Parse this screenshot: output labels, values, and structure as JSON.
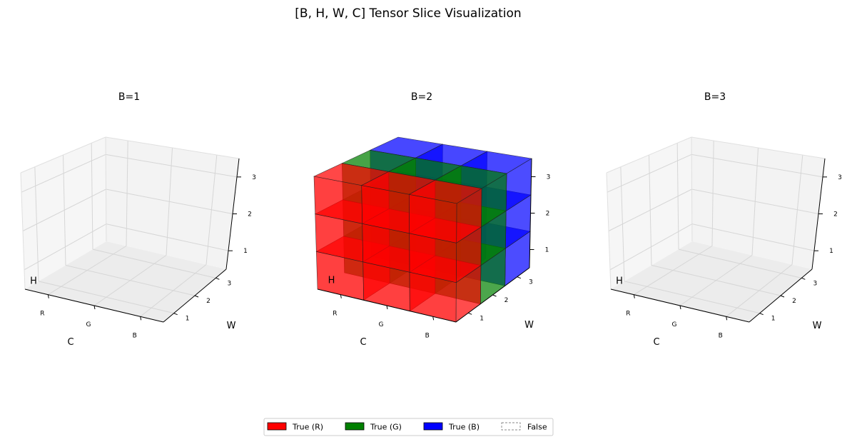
{
  "figure": {
    "title": "[B, H, W, C] Tensor Slice Visualization"
  },
  "axes": {
    "x_label": "C",
    "y_label": "W",
    "z_label": "H",
    "x_ticks": [
      "R",
      "G",
      "B"
    ],
    "y_ticks": [
      "1",
      "2",
      "3"
    ],
    "z_ticks": [
      "1",
      "2",
      "3"
    ]
  },
  "colors": {
    "R": "#ff0000",
    "G": "#008000",
    "B": "#0000ff",
    "pane": "#f2f2f2",
    "grid": "#d6d6d6",
    "edge": "#000000"
  },
  "panels": [
    {
      "title": "B=1",
      "filled": false
    },
    {
      "title": "B=2",
      "filled": true
    },
    {
      "title": "B=3",
      "filled": false
    }
  ],
  "legend": [
    {
      "label": "True (R)",
      "color": "#ff0000",
      "style": "solid"
    },
    {
      "label": "True (G)",
      "color": "#008000",
      "style": "solid"
    },
    {
      "label": "True (B)",
      "color": "#0000ff",
      "style": "solid"
    },
    {
      "label": "False",
      "color": "#ffffff",
      "style": "dashed"
    }
  ],
  "chart_data": {
    "type": "voxel",
    "dims": [
      "B",
      "H",
      "W",
      "C"
    ],
    "shape": [
      3,
      3,
      3,
      3
    ],
    "channels": [
      "R",
      "G",
      "B"
    ],
    "true_batches": [
      2
    ],
    "false_batches": [
      1,
      3
    ]
  }
}
